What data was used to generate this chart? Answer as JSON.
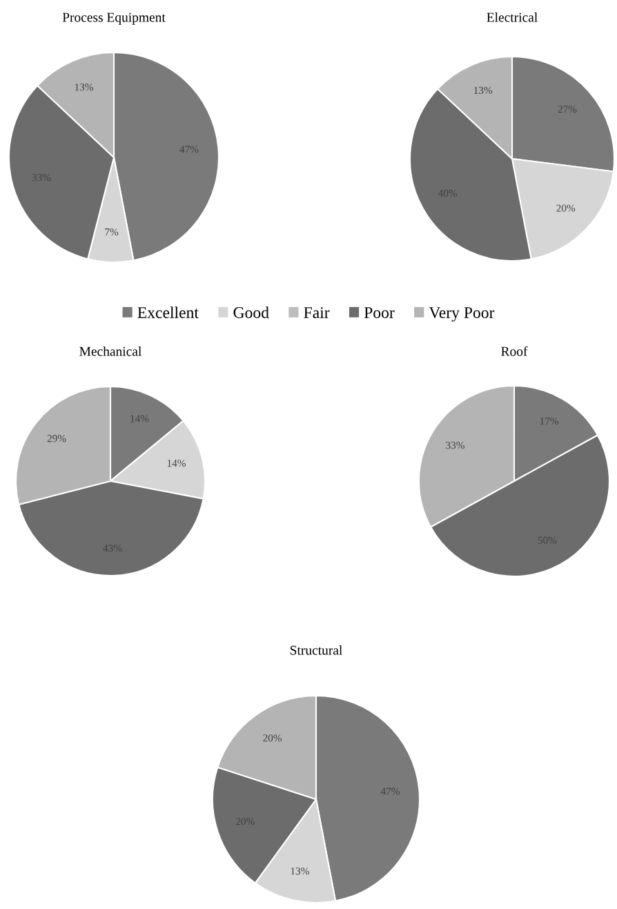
{
  "chart_data": [
    {
      "type": "pie",
      "title": "Process Equipment",
      "categories": [
        "Excellent",
        "Good",
        "Fair",
        "Poor",
        "Very Poor"
      ],
      "values": [
        47,
        7,
        0,
        33,
        13
      ],
      "colors": [
        "#7a7a7a",
        "#d6d6d6",
        "#bdbdbd",
        "#6c6c6c",
        "#b4b4b4"
      ],
      "value_labels": [
        "47%",
        "7%",
        null,
        "33%",
        "13%"
      ],
      "legend": "bottom"
    },
    {
      "type": "pie",
      "title": "Electrical",
      "categories": [
        null,
        null,
        null,
        null,
        null
      ],
      "values": [
        27,
        20,
        0,
        40,
        13
      ],
      "colors": [
        "#7a7a7a",
        "#d6d6d6",
        "#bdbdbd",
        "#6c6c6c",
        "#b4b4b4"
      ],
      "value_labels": [
        "27%",
        "20%",
        null,
        "40%",
        "13%"
      ]
    },
    {
      "type": "pie",
      "title": "Mechanical",
      "categories": [
        null,
        null,
        null,
        null,
        null
      ],
      "values": [
        14,
        14,
        0,
        43,
        29
      ],
      "colors": [
        "#7a7a7a",
        "#d6d6d6",
        "#bdbdbd",
        "#6c6c6c",
        "#b4b4b4"
      ],
      "value_labels": [
        "14%",
        "14%",
        null,
        "43%",
        "29%"
      ]
    },
    {
      "type": "pie",
      "title": "Roof",
      "categories": [
        null,
        null,
        null,
        null,
        null
      ],
      "values": [
        17,
        0,
        0,
        50,
        33
      ],
      "colors": [
        "#7a7a7a",
        "#d6d6d6",
        "#bdbdbd",
        "#6c6c6c",
        "#b4b4b4"
      ],
      "value_labels": [
        "17%",
        null,
        null,
        "50%",
        "33%"
      ]
    },
    {
      "type": "pie",
      "title": "Structural",
      "categories": [
        null,
        null,
        null,
        null,
        null
      ],
      "values": [
        47,
        13,
        0,
        20,
        20
      ],
      "colors": [
        "#7a7a7a",
        "#d6d6d6",
        "#bdbdbd",
        "#6c6c6c",
        "#b4b4b4"
      ],
      "value_labels": [
        "47%",
        "13%",
        null,
        "20%",
        "20%"
      ]
    }
  ]
}
